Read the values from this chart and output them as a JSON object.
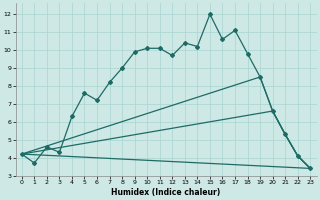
{
  "xlabel": "Humidex (Indice chaleur)",
  "bg_color": "#cde8e5",
  "line_color": "#1e6b65",
  "grid_color": "#a8d5d0",
  "xlim": [
    -0.5,
    23.5
  ],
  "ylim": [
    3,
    12.6
  ],
  "xticks": [
    0,
    1,
    2,
    3,
    4,
    5,
    6,
    7,
    8,
    9,
    10,
    11,
    12,
    13,
    14,
    15,
    16,
    17,
    18,
    19,
    20,
    21,
    22,
    23
  ],
  "yticks": [
    3,
    4,
    5,
    6,
    7,
    8,
    9,
    10,
    11,
    12
  ],
  "line1_x": [
    0,
    1,
    2,
    3,
    4,
    5,
    6,
    7,
    8,
    9,
    10,
    11,
    12,
    13,
    14,
    15,
    16,
    17,
    18,
    19,
    20,
    21,
    22,
    23
  ],
  "line1_y": [
    4.2,
    3.7,
    4.6,
    4.3,
    6.3,
    7.6,
    7.2,
    8.2,
    9.0,
    9.9,
    10.1,
    10.1,
    9.7,
    10.4,
    10.2,
    12.0,
    10.6,
    11.1,
    9.8,
    8.5,
    6.6,
    5.3,
    4.1,
    3.4
  ],
  "line2_x": [
    0,
    19,
    20,
    21,
    22,
    23
  ],
  "line2_y": [
    4.2,
    8.5,
    6.6,
    5.3,
    4.1,
    3.4
  ],
  "line3_x": [
    0,
    20,
    21,
    22,
    23
  ],
  "line3_y": [
    4.2,
    6.6,
    5.3,
    4.1,
    3.4
  ],
  "line4_x": [
    0,
    23
  ],
  "line4_y": [
    4.2,
    3.4
  ]
}
